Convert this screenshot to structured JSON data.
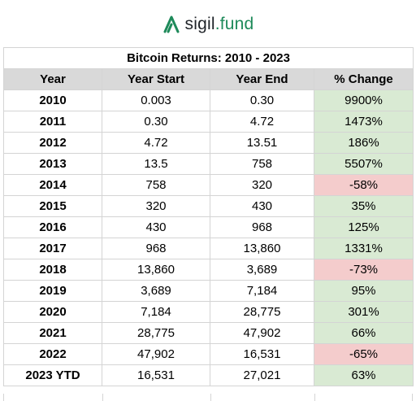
{
  "brand": {
    "name_prefix": "sigil",
    "name_suffix": ".fund",
    "accent_color": "#1e8a5a"
  },
  "table": {
    "title": "Bitcoin Returns: 2010 - 2023",
    "headers": [
      "Year",
      "Year Start",
      "Year End",
      "% Change"
    ],
    "rows": [
      {
        "year": "2010",
        "start": "0.003",
        "end": "0.30",
        "change": "9900%",
        "direction": "positive"
      },
      {
        "year": "2011",
        "start": "0.30",
        "end": "4.72",
        "change": "1473%",
        "direction": "positive"
      },
      {
        "year": "2012",
        "start": "4.72",
        "end": "13.51",
        "change": "186%",
        "direction": "positive"
      },
      {
        "year": "2013",
        "start": "13.5",
        "end": "758",
        "change": "5507%",
        "direction": "positive"
      },
      {
        "year": "2014",
        "start": "758",
        "end": "320",
        "change": "-58%",
        "direction": "negative"
      },
      {
        "year": "2015",
        "start": "320",
        "end": "430",
        "change": "35%",
        "direction": "positive"
      },
      {
        "year": "2016",
        "start": "430",
        "end": "968",
        "change": "125%",
        "direction": "positive"
      },
      {
        "year": "2017",
        "start": "968",
        "end": "13,860",
        "change": "1331%",
        "direction": "positive"
      },
      {
        "year": "2018",
        "start": "13,860",
        "end": "3,689",
        "change": "-73%",
        "direction": "negative"
      },
      {
        "year": "2019",
        "start": "3,689",
        "end": "7,184",
        "change": "95%",
        "direction": "positive"
      },
      {
        "year": "2020",
        "start": "7,184",
        "end": "28,775",
        "change": "301%",
        "direction": "positive"
      },
      {
        "year": "2021",
        "start": "28,775",
        "end": "47,902",
        "change": "66%",
        "direction": "positive"
      },
      {
        "year": "2022",
        "start": "47,902",
        "end": "16,531",
        "change": "-65%",
        "direction": "negative"
      },
      {
        "year": "2023 YTD",
        "start": "16,531",
        "end": "27,021",
        "change": "63%",
        "direction": "positive"
      }
    ]
  },
  "colors": {
    "positive_fill": "#d9ead3",
    "negative_fill": "#f4cccc",
    "header_fill": "#d9d9d9"
  }
}
